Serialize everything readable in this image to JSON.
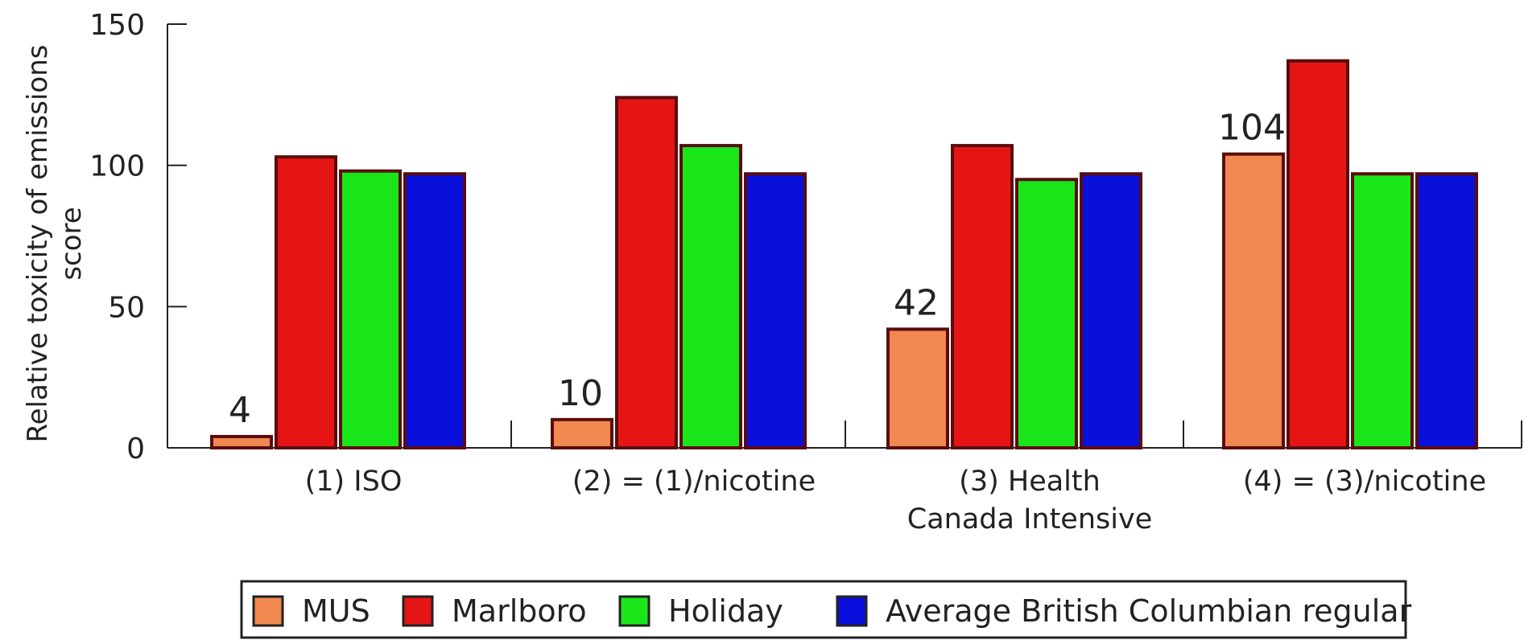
{
  "chart_data": {
    "type": "bar",
    "title": "",
    "ylabel_lines": [
      "Relative toxicity of emissions",
      "score"
    ],
    "xlabel": "",
    "ylim": [
      0,
      150
    ],
    "yticks": [
      0,
      50,
      100,
      150
    ],
    "categories": [
      [
        "(1) ISO"
      ],
      [
        "(2) = (1)/nicotine"
      ],
      [
        "(3) Health",
        "Canada Intensive"
      ],
      [
        "(4) = (3)/nicotine"
      ]
    ],
    "series": [
      {
        "name": "MUS",
        "color": "#f08850",
        "values": [
          4,
          10,
          42,
          104
        ],
        "labels": [
          "4",
          "10",
          "42",
          "104"
        ]
      },
      {
        "name": "Marlboro",
        "color": "#e51515",
        "values": [
          103,
          124,
          107,
          137
        ]
      },
      {
        "name": "Holiday",
        "color": "#19e619",
        "values": [
          98,
          107,
          95,
          97
        ]
      },
      {
        "name": "Average British Columbian regular",
        "color": "#0a10dc",
        "values": [
          97,
          97,
          97,
          97
        ]
      }
    ],
    "grid": false,
    "legend_position": "bottom"
  }
}
